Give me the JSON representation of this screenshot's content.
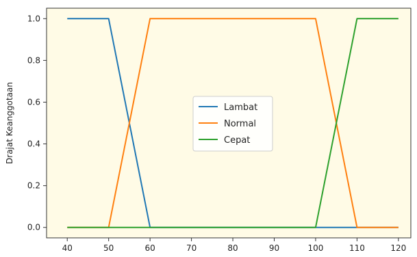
{
  "chart_data": {
    "type": "line",
    "title": "",
    "xlabel": "",
    "ylabel": "Drajat Keanggotaan",
    "xlim": [
      35,
      123
    ],
    "ylim": [
      -0.05,
      1.05
    ],
    "xticks": [
      40,
      50,
      60,
      70,
      80,
      90,
      100,
      110,
      120
    ],
    "yticks": [
      0.0,
      0.2,
      0.4,
      0.6,
      0.8,
      1.0
    ],
    "ytick_labels": [
      "0.0",
      "0.2",
      "0.4",
      "0.6",
      "0.8",
      "1.0"
    ],
    "grid": false,
    "legend_position": "center",
    "series": [
      {
        "name": "Lambat",
        "color": "#1f77b4",
        "x": [
          40,
          50,
          60,
          120
        ],
        "y": [
          1,
          1,
          0,
          0
        ]
      },
      {
        "name": "Normal",
        "color": "#ff7f0e",
        "x": [
          40,
          50,
          60,
          100,
          110,
          120
        ],
        "y": [
          0,
          0,
          1,
          1,
          0,
          0
        ]
      },
      {
        "name": "Cepat",
        "color": "#2ca02c",
        "x": [
          40,
          100,
          110,
          120
        ],
        "y": [
          0,
          0,
          1,
          1
        ]
      }
    ]
  }
}
